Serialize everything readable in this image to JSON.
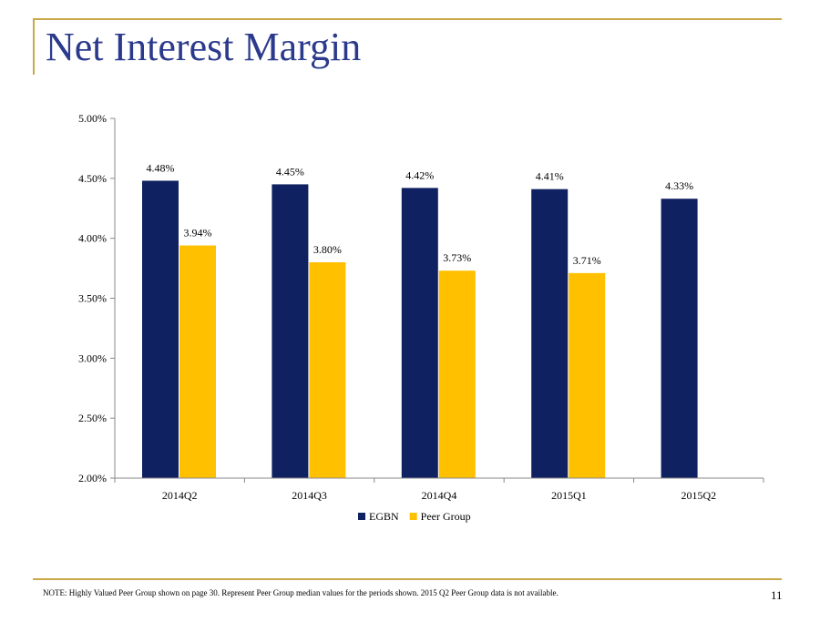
{
  "slide": {
    "title": "Net Interest Margin",
    "note": "NOTE:  Highly Valued Peer Group shown on page 30. Represent Peer Group median values for the periods shown.  2015 Q2 Peer Group data is not available.",
    "page_number": "11"
  },
  "colors": {
    "accent_rule": "#c9a84a",
    "title": "#2b3a8c"
  },
  "chart_data": {
    "type": "bar",
    "title": "",
    "xlabel": "",
    "ylabel": "",
    "categories": [
      "2014Q2",
      "2014Q3",
      "2014Q4",
      "2015Q1",
      "2015Q2"
    ],
    "series": [
      {
        "name": "EGBN",
        "color": "#0f2160",
        "values": [
          4.48,
          4.45,
          4.42,
          4.41,
          4.33
        ],
        "labels": [
          "4.48%",
          "4.45%",
          "4.42%",
          "4.41%",
          "4.33%"
        ]
      },
      {
        "name": "Peer Group",
        "color": "#ffc000",
        "values": [
          3.94,
          3.8,
          3.73,
          3.71,
          null
        ],
        "labels": [
          "3.94%",
          "3.80%",
          "3.73%",
          "3.71%",
          null
        ]
      }
    ],
    "ylim": [
      2.0,
      5.0
    ],
    "yticks": [
      2.0,
      2.5,
      3.0,
      3.5,
      4.0,
      4.5,
      5.0
    ],
    "ytick_labels": [
      "2.00%",
      "2.50%",
      "3.00%",
      "3.50%",
      "4.00%",
      "4.50%",
      "5.00%"
    ],
    "grid": false,
    "legend_position": "bottom"
  }
}
